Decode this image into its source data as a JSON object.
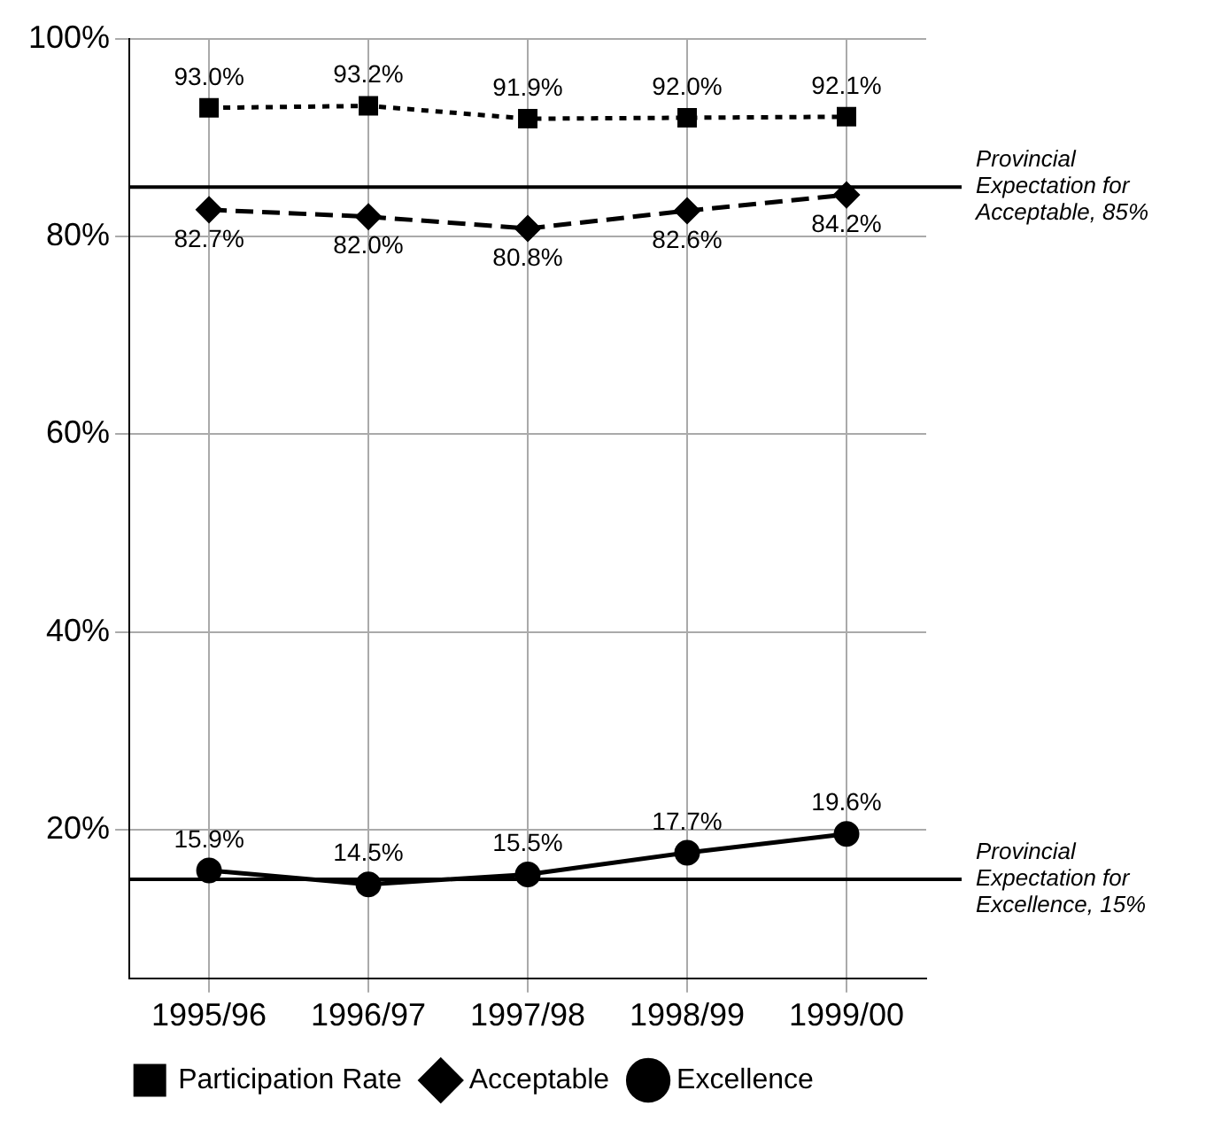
{
  "chart_data": {
    "type": "line",
    "categories": [
      "1995/96",
      "1996/97",
      "1997/98",
      "1998/99",
      "1999/00"
    ],
    "series": [
      {
        "name": "Participation Rate",
        "color": "#000000",
        "marker": "square",
        "line_style": "dotted",
        "values": [
          93.0,
          93.2,
          91.9,
          92.0,
          92.1
        ],
        "value_labels": [
          "93.0%",
          "93.2%",
          "91.9%",
          "92.0%",
          "92.1%"
        ]
      },
      {
        "name": "Acceptable",
        "color": "#000000",
        "marker": "diamond",
        "line_style": "dashed",
        "values": [
          82.7,
          82.0,
          80.8,
          82.6,
          84.2
        ],
        "value_labels": [
          "82.7%",
          "82.0%",
          "80.8%",
          "82.6%",
          "84.2%"
        ]
      },
      {
        "name": "Excellence",
        "color": "#000000",
        "marker": "circle",
        "line_style": "solid",
        "values": [
          15.9,
          14.5,
          15.5,
          17.7,
          19.6
        ],
        "value_labels": [
          "15.9%",
          "14.5%",
          "15.5%",
          "17.7%",
          "19.6%"
        ]
      }
    ],
    "ylim": [
      5,
      100
    ],
    "yticks": [
      {
        "value": 20,
        "label": "20%"
      },
      {
        "value": 40,
        "label": "40%"
      },
      {
        "value": 60,
        "label": "60%"
      },
      {
        "value": 80,
        "label": "80%"
      },
      {
        "value": 100,
        "label": "100%"
      }
    ],
    "ref_lines": [
      {
        "axis": "y",
        "value": 85,
        "label": "Provincial Expectation for Acceptable, 85%",
        "color": "#000000"
      },
      {
        "axis": "y",
        "value": 15,
        "label": "Provincial Expectation for Excellence, 15%",
        "color": "#000000"
      }
    ],
    "grid": true,
    "legend": "bottom"
  }
}
